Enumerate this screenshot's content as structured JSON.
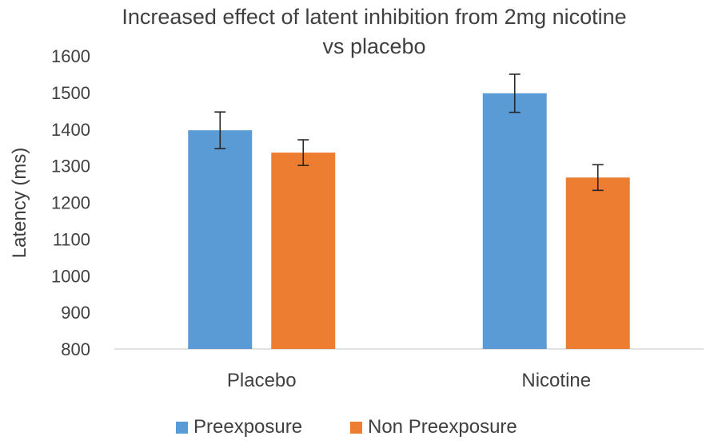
{
  "chart_data": {
    "type": "bar",
    "title_lines": [
      "Increased effect of latent inhibition from 2mg nicotine",
      "vs placebo"
    ],
    "xlabel": "",
    "ylabel": "Latency (ms)",
    "ylim": [
      800,
      1600
    ],
    "yticks": [
      800,
      900,
      1000,
      1100,
      1200,
      1300,
      1400,
      1500,
      1600
    ],
    "ytick_labels": [
      "800",
      "900",
      "1000",
      "1100",
      "1200",
      "1300",
      "1400",
      "1500",
      "1600"
    ],
    "grid": false,
    "legend_position": "bottom",
    "categories": [
      "Placebo",
      "Nicotine"
    ],
    "series": [
      {
        "name": "Preexposure",
        "color": "#5B9BD5",
        "values": [
          1397,
          1498
        ],
        "errors": [
          50,
          52
        ]
      },
      {
        "name": "Non Preexposure",
        "color": "#ED7D31",
        "values": [
          1336,
          1268
        ],
        "errors": [
          35,
          35
        ]
      }
    ]
  }
}
